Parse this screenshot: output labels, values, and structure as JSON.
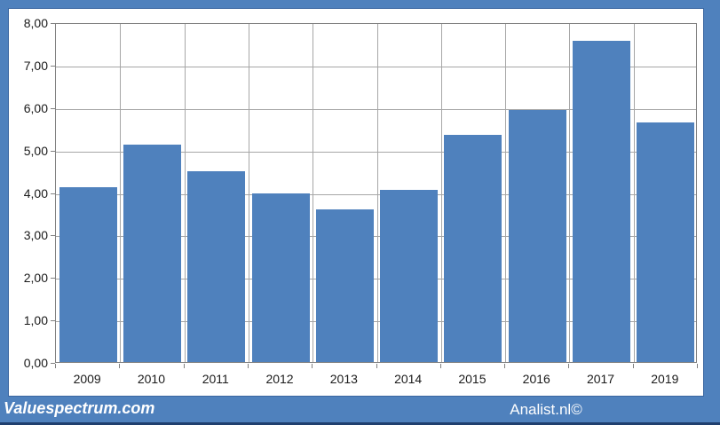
{
  "chart_data": {
    "type": "bar",
    "categories": [
      "2009",
      "2010",
      "2011",
      "2012",
      "2013",
      "2014",
      "2015",
      "2016",
      "2017",
      "2019"
    ],
    "values": [
      4.12,
      5.12,
      4.5,
      3.97,
      3.6,
      4.05,
      5.35,
      5.93,
      7.57,
      5.65
    ],
    "title": "",
    "xlabel": "",
    "ylabel": "",
    "ylim": [
      0,
      8
    ],
    "ytick_step": 1,
    "ytick_labels": [
      "0,00",
      "1,00",
      "2,00",
      "3,00",
      "4,00",
      "5,00",
      "6,00",
      "7,00",
      "8,00"
    ],
    "grid": true,
    "legend_position": "none",
    "bar_color": "#4f81bd"
  },
  "footer": {
    "brand": "Valuespectrum.com",
    "attribution": "Analist.nl©"
  },
  "colors": {
    "frame_blue": "#4f81bd",
    "bar_blue": "#4f81bd",
    "gridline_gray": "#a6a6a6",
    "plot_border_gray": "#808080",
    "panel_border_blue": "#3a66a0",
    "bottom_line_navy": "#1f3f6e",
    "axis_text": "#1a1a1a",
    "footer_text": "#ffffff"
  }
}
